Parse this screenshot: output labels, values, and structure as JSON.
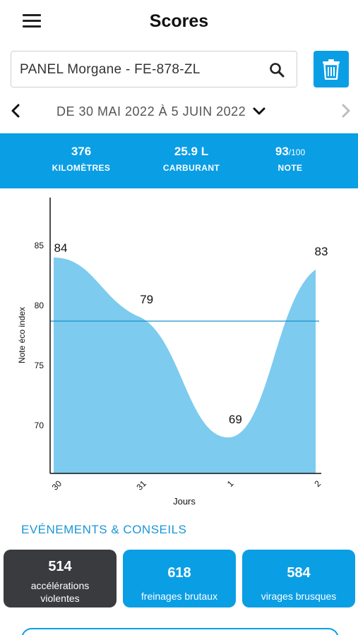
{
  "header": {
    "title": "Scores",
    "menu_icon": "hamburger-menu-icon"
  },
  "search": {
    "value": "PANEL Morgane - FE-878-ZL",
    "placeholder": "",
    "icon": "search-icon"
  },
  "delete_icon": "trash-icon",
  "period": {
    "label": "DE 30 MAI 2022 À 5 JUIN 2022",
    "prev_icon": "chevron-left-icon",
    "next_icon": "chevron-right-icon",
    "dropdown_icon": "chevron-down-icon"
  },
  "summary": {
    "distance": {
      "value": "376",
      "label": "KILOMÈTRES"
    },
    "fuel": {
      "value": "25.9 L",
      "label": "CARBURANT"
    },
    "score": {
      "value": "93",
      "unit": "/100",
      "label": "NOTE"
    }
  },
  "colors": {
    "accent": "#0a9ee5",
    "area_fill": "#7dcbef",
    "dark_card": "#3a3b3e"
  },
  "chart_data": {
    "type": "area",
    "x": [
      "30",
      "31",
      "1",
      "2"
    ],
    "values": [
      84,
      79,
      69,
      83
    ],
    "data_labels": [
      "84",
      "79",
      "69",
      "83"
    ],
    "average_line": 78.7,
    "ylabel": "Note éco index",
    "xlabel": "Jours",
    "yticks": [
      "85",
      "80",
      "75",
      "70"
    ],
    "ylim": [
      66,
      89
    ],
    "grid": false
  },
  "events": {
    "title": "EVÉNEMENTS & CONSEILS",
    "items": [
      {
        "count": "514",
        "label_line1": "accélérations",
        "label_line2": "violentes"
      },
      {
        "count": "618",
        "label_line1": "freinages brutaux",
        "label_line2": ""
      },
      {
        "count": "584",
        "label_line1": "virages brusques",
        "label_line2": ""
      }
    ]
  }
}
